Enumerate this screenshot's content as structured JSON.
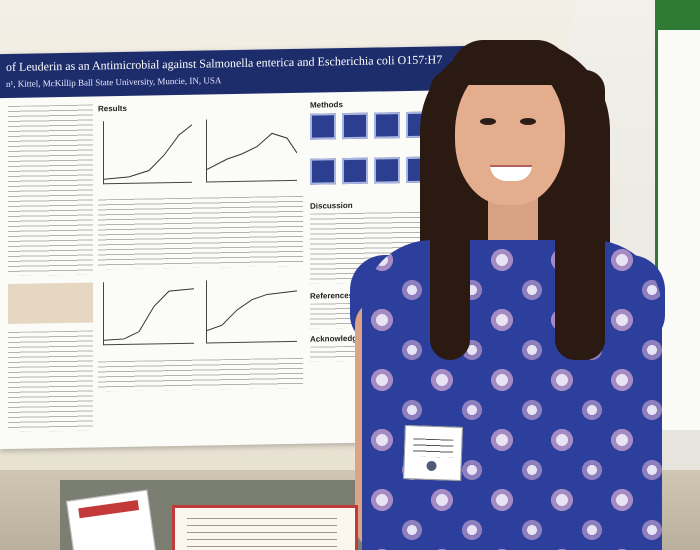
{
  "poster": {
    "title": "of Leuderin as an Antimicrobial against Salmonella enterica and Escherichia coli O157:H7",
    "authors": "n¹, Kittel, McKillip",
    "affiliation": "Ball State University, Muncie, IN, USA",
    "sections": {
      "results": "Results",
      "methods": "Methods",
      "discussion": "Discussion",
      "references": "References",
      "acknowledgements": "Acknowledgements"
    },
    "colors": {
      "header": "#1d2d6b",
      "panel_accent": "#2f7a35"
    }
  },
  "scene": {
    "subject": "student-presenter",
    "dress_color": "#2d3f9c"
  }
}
